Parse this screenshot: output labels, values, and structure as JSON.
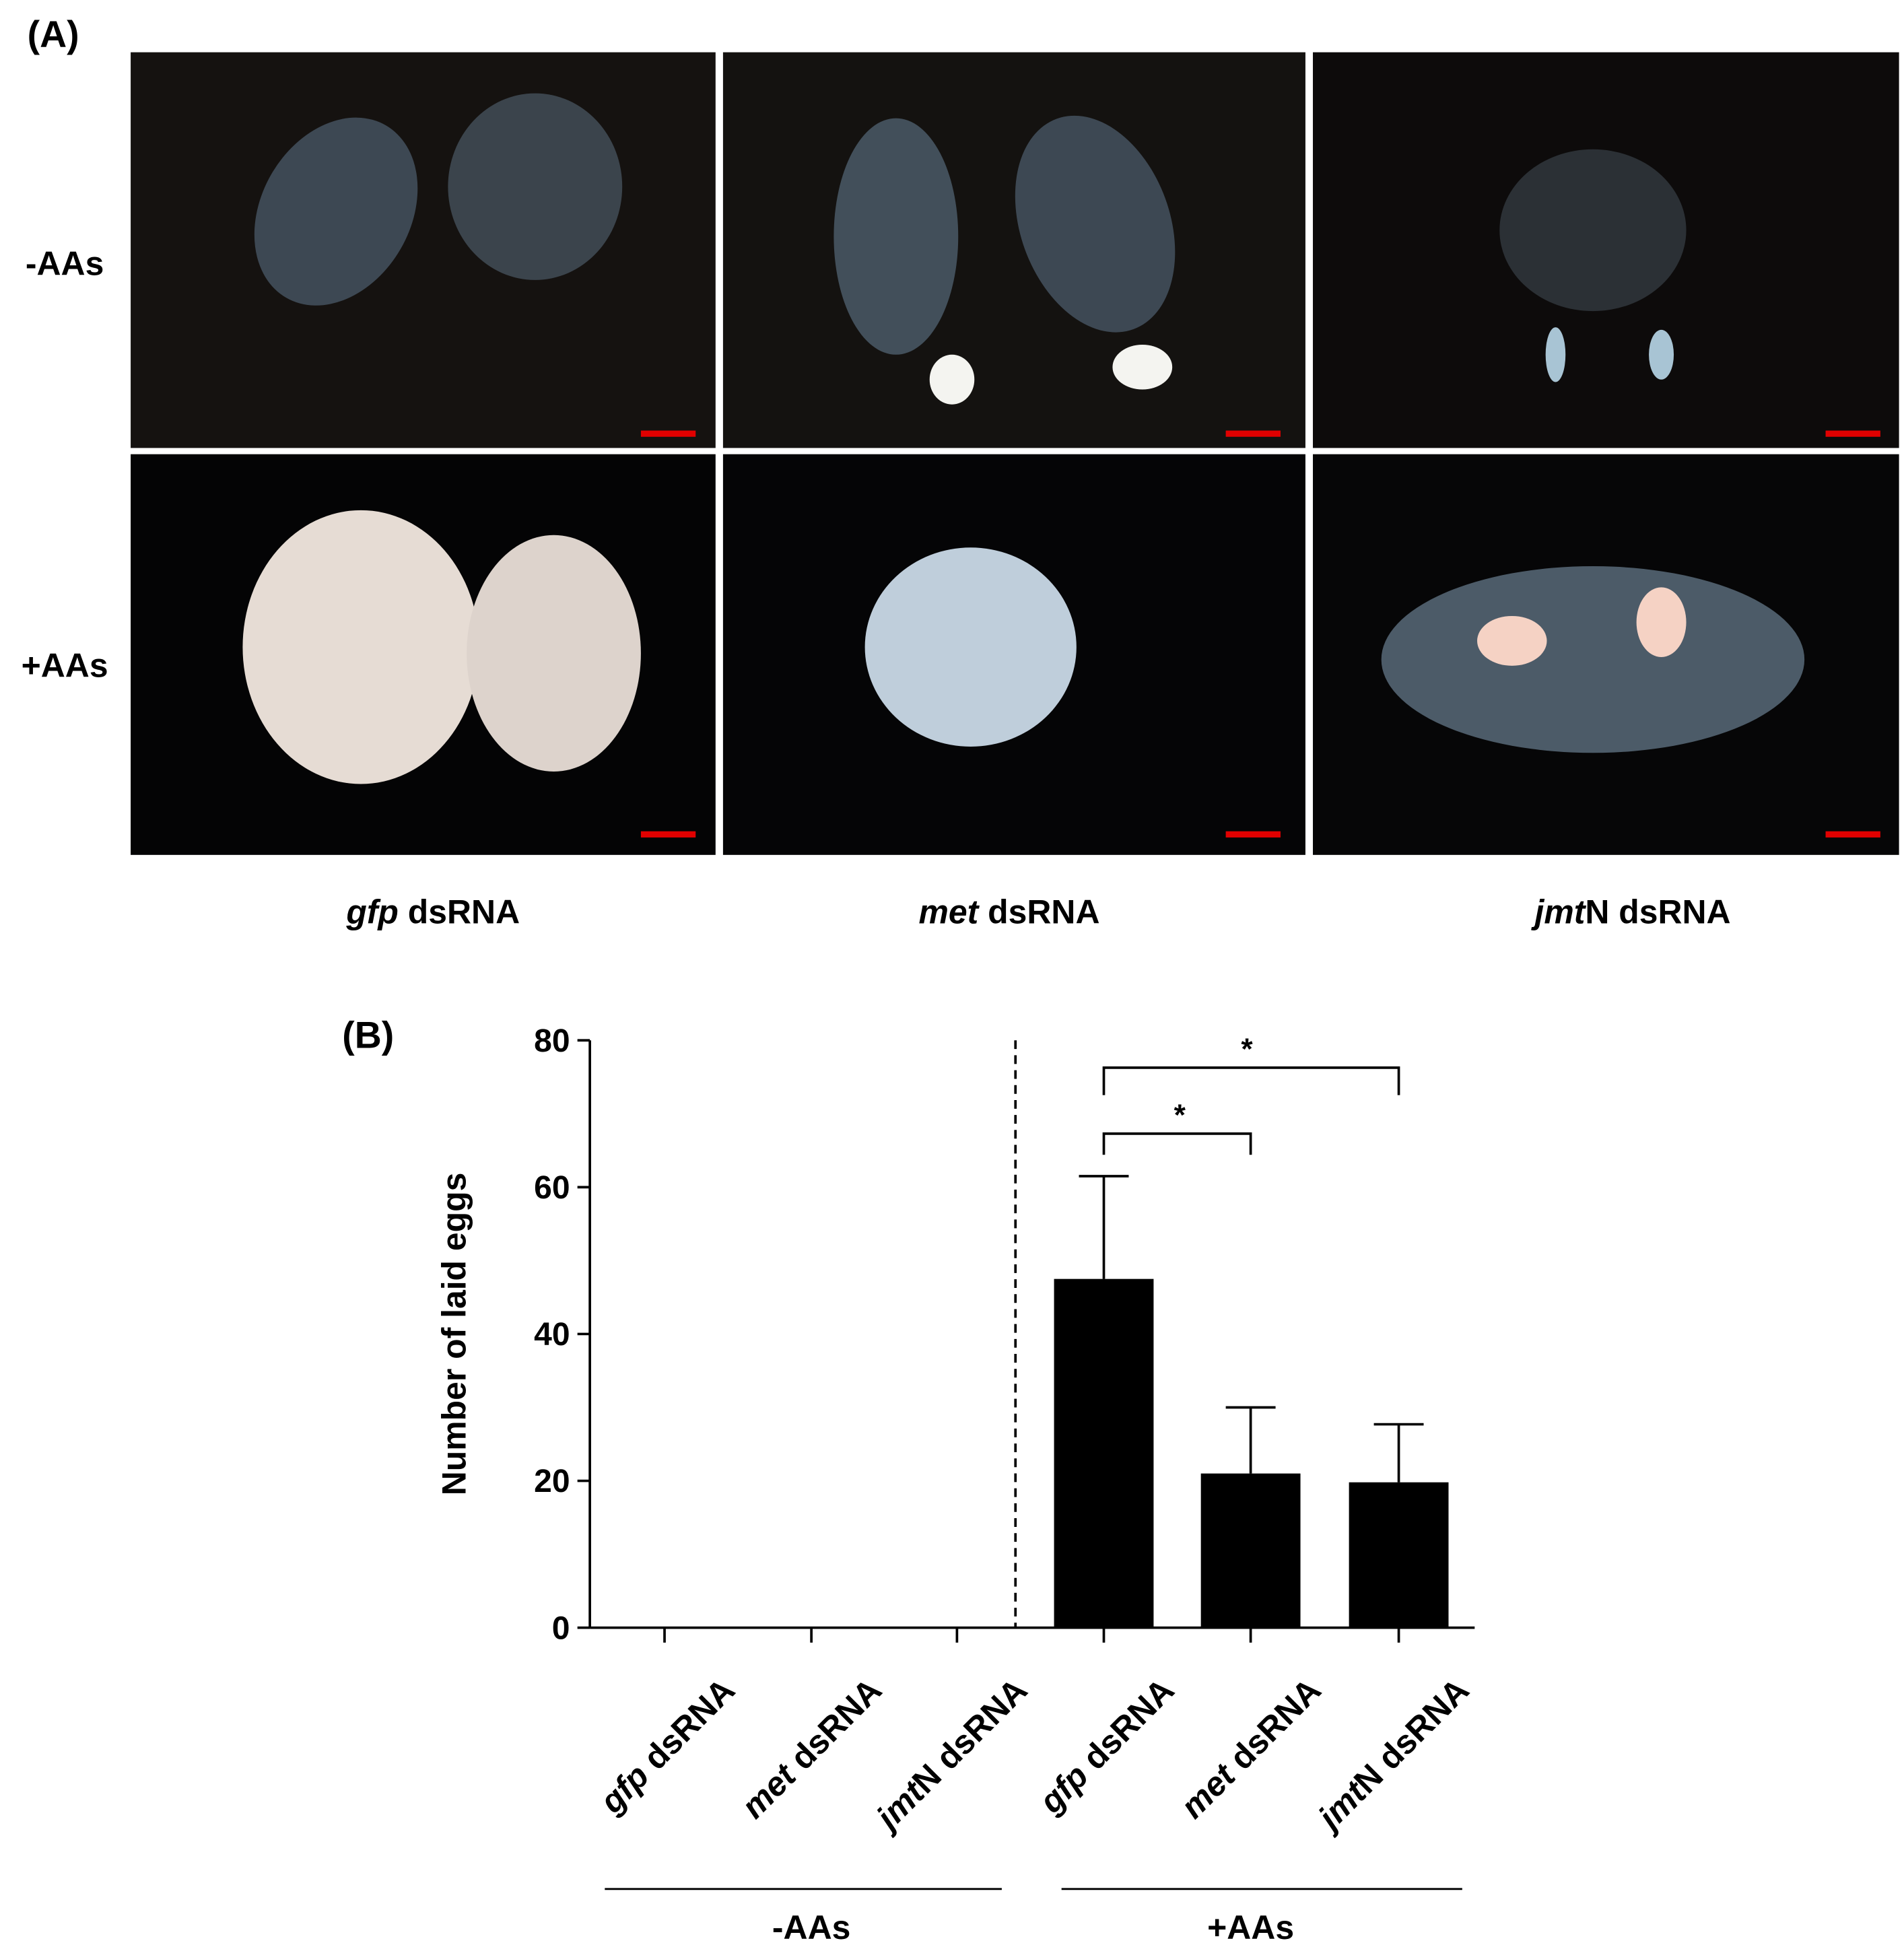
{
  "panel_a": {
    "label": "(A)",
    "row_labels": [
      "-AAs",
      "+AAs"
    ],
    "column_labels": [
      {
        "italic": "gfp",
        "text": " dsRNA"
      },
      {
        "italic": "met",
        "text": " dsRNA"
      },
      {
        "italic": "jmt",
        "text": "N dsRNA"
      }
    ]
  },
  "chart_data": {
    "type": "bar",
    "label": "(B)",
    "y_label": "Number of laid eggs",
    "categories": [
      {
        "italic": "gfp",
        "text": " dsRNA"
      },
      {
        "italic": "met",
        "text": " dsRNA"
      },
      {
        "italic": "jmt",
        "text": "N dsRNA"
      },
      {
        "italic": "gfp",
        "text": " dsRNA"
      },
      {
        "italic": "met",
        "text": " dsRNA"
      },
      {
        "italic": "jmt",
        "text": "N dsRNA"
      }
    ],
    "values": [
      0,
      0,
      0,
      47.5,
      21,
      19.8
    ],
    "errors": [
      null,
      null,
      null,
      14,
      9,
      7.9
    ],
    "color": "#000000",
    "groups": [
      "-AAs",
      "+AAs"
    ],
    "annotations": [
      "*",
      "*"
    ],
    "ylim": [
      0,
      80
    ],
    "yticks": [
      0,
      20,
      40,
      60,
      80
    ]
  }
}
